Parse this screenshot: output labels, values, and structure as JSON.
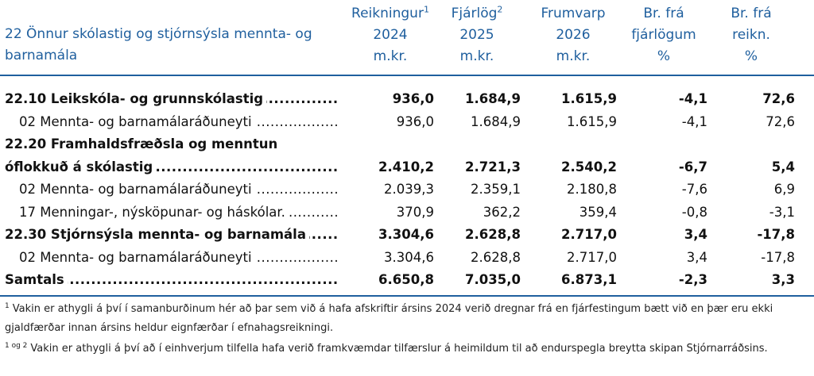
{
  "header": {
    "title": "22 Önnur skólastig og stjórnsýsla mennta- og barnamála",
    "columns": [
      {
        "lines": [
          "Reikningur",
          "2024",
          "m.kr."
        ],
        "sup": "1"
      },
      {
        "lines": [
          "Fjárlög",
          "2025",
          "m.kr."
        ],
        "sup": "2"
      },
      {
        "lines": [
          "Frumvarp",
          "2026",
          "m.kr."
        ]
      },
      {
        "lines": [
          "Br. frá",
          "fjárlögum",
          "%"
        ]
      },
      {
        "lines": [
          "Br. frá",
          "reikn.",
          "%"
        ]
      }
    ]
  },
  "table": {
    "rows": [
      {
        "label": "22.10 Leikskóla- og grunnskólastig",
        "bold": true,
        "indent": false,
        "cells": [
          "936,0",
          "1.684,9",
          "1.615,9",
          "-4,1",
          "72,6"
        ]
      },
      {
        "label": "02 Mennta- og barnamálaráðuneyti",
        "bold": false,
        "indent": true,
        "cells": [
          "936,0",
          "1.684,9",
          "1.615,9",
          "-4,1",
          "72,6"
        ]
      },
      {
        "label": "22.20 Framhaldsfræðsla og menntun óflokkuð á skólastig",
        "bold": true,
        "indent": false,
        "cells": [
          "2.410,2",
          "2.721,3",
          "2.540,2",
          "-6,7",
          "5,4"
        ]
      },
      {
        "label": "02 Mennta- og barnamálaráðuneyti",
        "bold": false,
        "indent": true,
        "cells": [
          "2.039,3",
          "2.359,1",
          "2.180,8",
          "-7,6",
          "6,9"
        ]
      },
      {
        "label": "17 Menningar-, nýsköpunar- og háskólar.",
        "bold": false,
        "indent": true,
        "cells": [
          "370,9",
          "362,2",
          "359,4",
          "-0,8",
          "-3,1"
        ]
      },
      {
        "label": "22.30 Stjórnsýsla mennta- og barnamála",
        "bold": true,
        "indent": false,
        "cells": [
          "3.304,6",
          "2.628,8",
          "2.717,0",
          "3,4",
          "-17,8"
        ]
      },
      {
        "label": "02 Mennta- og barnamálaráðuneyti",
        "bold": false,
        "indent": true,
        "cells": [
          "3.304,6",
          "2.628,8",
          "2.717,0",
          "3,4",
          "-17,8"
        ]
      },
      {
        "label": "Samtals",
        "bold": true,
        "indent": false,
        "cells": [
          "6.650,8",
          "7.035,0",
          "6.873,1",
          "-2,3",
          "3,3"
        ]
      }
    ]
  },
  "footnotes": [
    {
      "marker": "1",
      "text": "Vakin er athygli á því í samanburðinum hér að þar sem við á hafa afskriftir ársins 2024 verið dregnar frá en fjárfestingum bætt við en þær eru ekki gjaldfærðar innan ársins heldur eignfærðar í efnahagsreikningi."
    },
    {
      "marker": "1 og 2",
      "text": "Vakin er athygli á því að í einhverjum tilfella hafa verið framkvæmdar tilfærslur á heimildum til að endurspegla breytta skipan Stjórnarráðsins."
    }
  ]
}
